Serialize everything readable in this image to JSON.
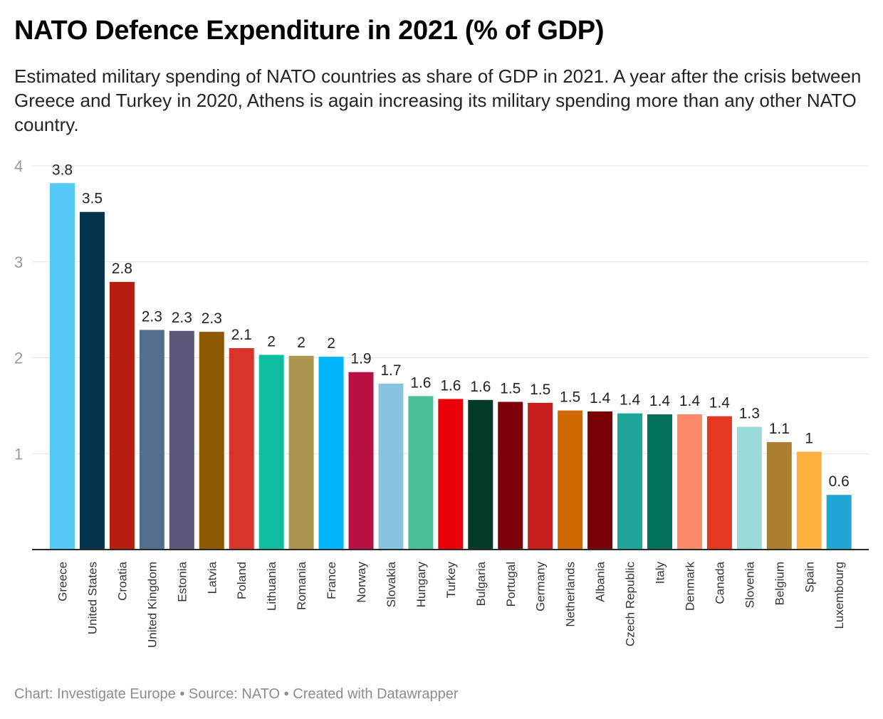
{
  "header": {
    "title": "NATO Defence Expenditure in 2021 (% of GDP)",
    "subtitle": "Estimated military spending of NATO countries as share of GDP in 2021. A year after the crisis between Greece and Turkey in 2020, Athens is again increasing its military spending more than any other NATO country."
  },
  "footer": {
    "chart_credit": "Chart: Investigate Europe",
    "separator": " • ",
    "source": "Source: NATO",
    "tool": "Created with Datawrapper"
  },
  "chart_data": {
    "type": "bar",
    "title": "NATO Defence Expenditure in 2021 (% of GDP)",
    "xlabel": "",
    "ylabel": "",
    "ylim": [
      0,
      4
    ],
    "yticks": [
      1,
      2,
      3,
      4
    ],
    "grid": true,
    "legend": "none",
    "categories": [
      "Greece",
      "United States",
      "Croatia",
      "United Kingdom",
      "Estonia",
      "Latvia",
      "Poland",
      "Lithuania",
      "Romania",
      "France",
      "Norway",
      "Slovakia",
      "Hungary",
      "Turkey",
      "Bulgaria",
      "Portugal",
      "Germany",
      "Netherlands",
      "Albania",
      "Czech Republic",
      "Italy",
      "Denmark",
      "Canada",
      "Slovenia",
      "Belgium",
      "Spain",
      "Luxembourg"
    ],
    "values": [
      3.82,
      3.52,
      2.79,
      2.29,
      2.28,
      2.27,
      2.1,
      2.03,
      2.02,
      2.01,
      1.85,
      1.73,
      1.6,
      1.57,
      1.56,
      1.54,
      1.53,
      1.45,
      1.44,
      1.42,
      1.41,
      1.41,
      1.39,
      1.28,
      1.12,
      1.02,
      0.57
    ],
    "labels": [
      "3.8",
      "3.5",
      "2.8",
      "2.3",
      "2.3",
      "2.3",
      "2.1",
      "2",
      "2",
      "2",
      "1.9",
      "1.7",
      "1.6",
      "1.6",
      "1.6",
      "1.5",
      "1.5",
      "1.5",
      "1.4",
      "1.4",
      "1.4",
      "1.4",
      "1.4",
      "1.3",
      "1.1",
      "1",
      "0.6"
    ],
    "colors": [
      "#56c8f5",
      "#04334d",
      "#b81e10",
      "#52708d",
      "#5f5578",
      "#8d5802",
      "#d9342b",
      "#0ebea0",
      "#ab9650",
      "#00b5fb",
      "#b81043",
      "#87c4e2",
      "#49c09c",
      "#ea0009",
      "#043a2b",
      "#7e0008",
      "#c71e1d",
      "#d06a00",
      "#790004",
      "#1fa598",
      "#03715b",
      "#fe8a6c",
      "#e53822",
      "#98dbd9",
      "#ac7f2f",
      "#fdb240",
      "#20a5d4"
    ],
    "grid_color": "#e4e4e4",
    "axis_color": "#2a2a2a",
    "tick_label_color": "#999999"
  }
}
